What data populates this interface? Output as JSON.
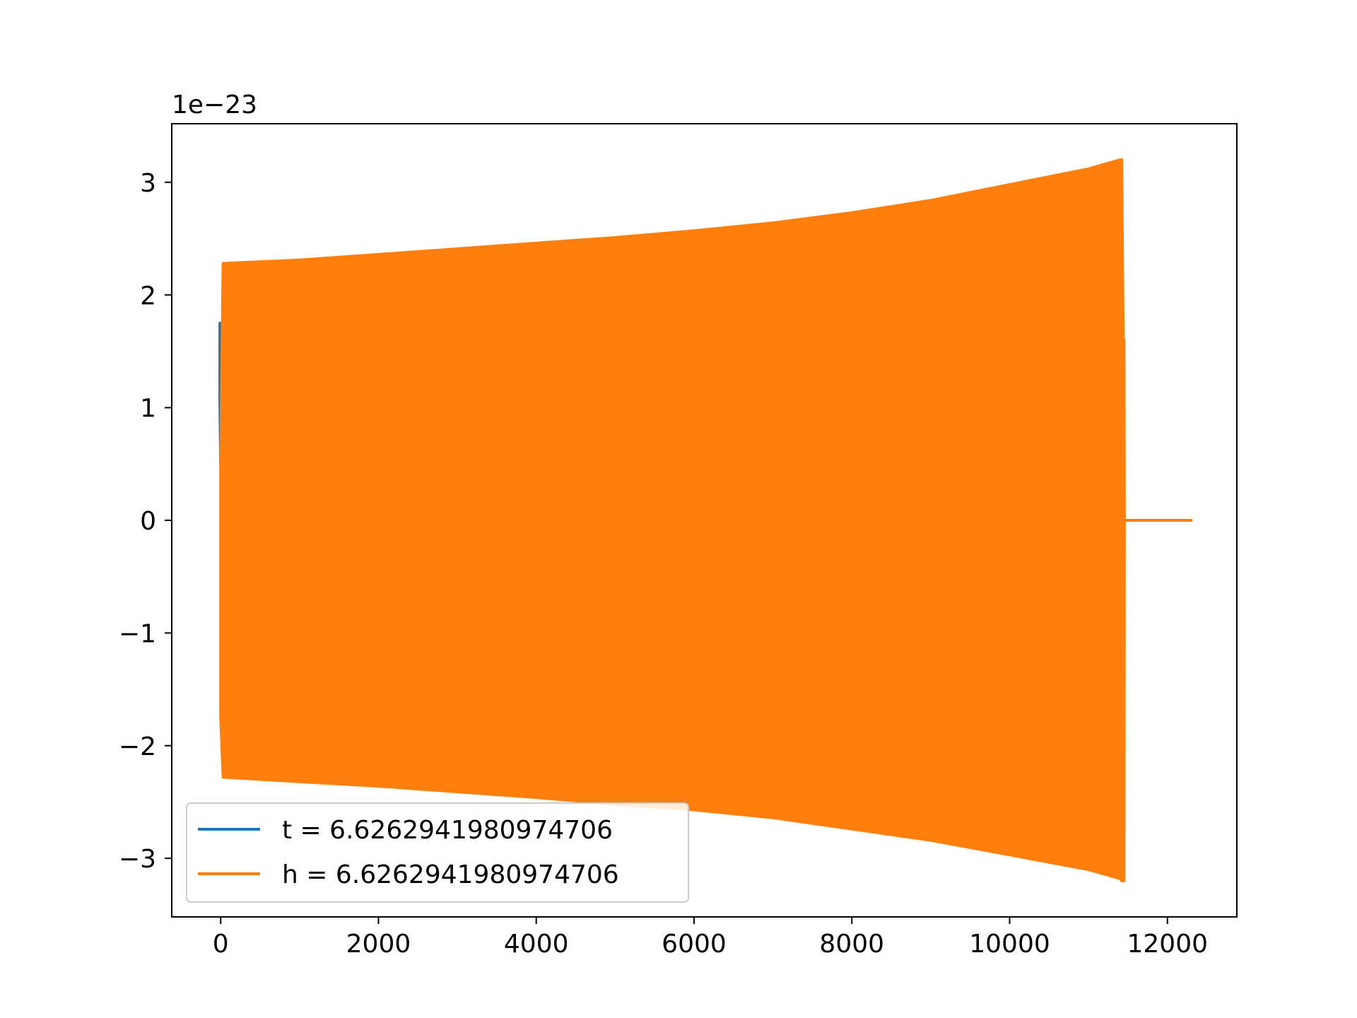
{
  "chart_data": {
    "type": "line",
    "title": "",
    "xlabel": "",
    "ylabel": "",
    "offset_label": "1e−23",
    "xlim": [
      -620,
      12880
    ],
    "ylim": [
      -3.52,
      3.52
    ],
    "x_ticks": [
      0,
      2000,
      4000,
      6000,
      8000,
      10000,
      12000
    ],
    "x_tick_labels": [
      "0",
      "2000",
      "4000",
      "6000",
      "8000",
      "10000",
      "12000"
    ],
    "y_ticks": [
      -3,
      -2,
      -1,
      0,
      1,
      2,
      3
    ],
    "y_tick_labels": [
      "−3",
      "−2",
      "−1",
      "0",
      "1",
      "2",
      "3"
    ],
    "grid": false,
    "legend_position": "lower-left",
    "series": [
      {
        "name": "t = 6.6262941980974706",
        "color": "#1f77b4",
        "x_range": [
          -10,
          20
        ],
        "envelope_x": [
          -10,
          0,
          20
        ],
        "envelope_upper": [
          1.75,
          1.75,
          1.75
        ],
        "envelope_lower": [
          1.05,
          0.5,
          1.05
        ]
      },
      {
        "name": "h = 6.6262941980974706",
        "color": "#ff7f0e",
        "x_range": [
          0,
          12300
        ],
        "envelope_x": [
          0,
          30,
          1000,
          2000,
          3000,
          4000,
          5000,
          6000,
          7000,
          8000,
          9000,
          10000,
          11000,
          11400,
          11420,
          11440,
          11450,
          11455,
          12300
        ],
        "envelope_upper": [
          0.5,
          2.28,
          2.31,
          2.36,
          2.41,
          2.46,
          2.51,
          2.57,
          2.64,
          2.73,
          2.84,
          2.98,
          3.12,
          3.2,
          3.2,
          1.6,
          1.6,
          0.0,
          0.0
        ],
        "envelope_lower": [
          -1.75,
          -2.28,
          -2.32,
          -2.36,
          -2.41,
          -2.46,
          -2.52,
          -2.57,
          -2.64,
          -2.74,
          -2.84,
          -2.97,
          -3.1,
          -3.18,
          -3.2,
          -3.2,
          -3.2,
          0.0,
          0.0
        ]
      }
    ]
  }
}
